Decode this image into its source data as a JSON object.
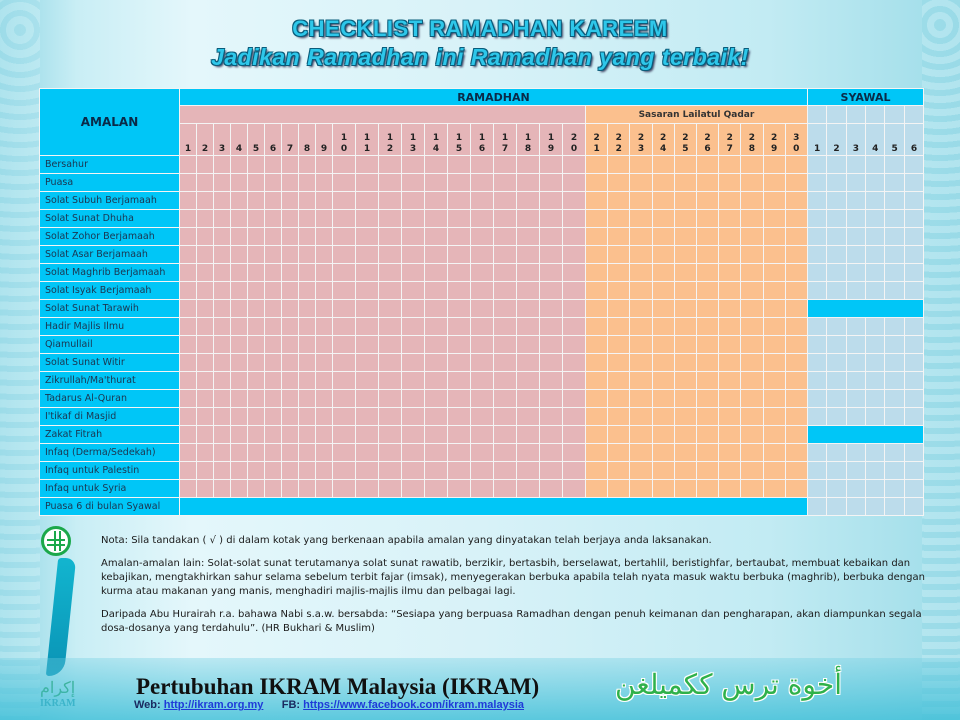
{
  "header": {
    "title": "CHECKLIST RAMADHAN KAREEM",
    "subtitle": "Jadikan Ramadhan ini Ramadhan yang terbaik!"
  },
  "table": {
    "amalan_header": "AMALAN",
    "ramadhan_header": "RAMADHAN",
    "syawal_header": "SYAWAL",
    "lailatul_qadar_header": "Sasaran Lailatul Qadar",
    "ramadhan_days": [
      "1",
      "2",
      "3",
      "4",
      "5",
      "6",
      "7",
      "8",
      "9",
      "10",
      "11",
      "12",
      "13",
      "14",
      "15",
      "16",
      "17",
      "18",
      "19",
      "20",
      "21",
      "22",
      "23",
      "24",
      "25",
      "26",
      "27",
      "28",
      "29",
      "30"
    ],
    "syawal_days": [
      "1",
      "2",
      "3",
      "4",
      "5",
      "6"
    ],
    "rows": [
      {
        "label": "Bersahur",
        "ramadhan": true,
        "syawal": true
      },
      {
        "label": "Puasa",
        "ramadhan": true,
        "syawal": true
      },
      {
        "label": "Solat Subuh Berjamaah",
        "ramadhan": true,
        "syawal": true
      },
      {
        "label": "Solat Sunat Dhuha",
        "ramadhan": true,
        "syawal": true
      },
      {
        "label": "Solat Zohor Berjamaah",
        "ramadhan": true,
        "syawal": true
      },
      {
        "label": "Solat Asar Berjamaah",
        "ramadhan": true,
        "syawal": true
      },
      {
        "label": "Solat Maghrib Berjamaah",
        "ramadhan": true,
        "syawal": true
      },
      {
        "label": "Solat Isyak Berjamaah",
        "ramadhan": true,
        "syawal": true
      },
      {
        "label": "Solat Sunat Tarawih",
        "ramadhan": true,
        "syawal": false
      },
      {
        "label": "Hadir Majlis Ilmu",
        "ramadhan": true,
        "syawal": true
      },
      {
        "label": "Qiamullail",
        "ramadhan": true,
        "syawal": true
      },
      {
        "label": "Solat Sunat Witir",
        "ramadhan": true,
        "syawal": true
      },
      {
        "label": "Zikrullah/Ma'thurat",
        "ramadhan": true,
        "syawal": true
      },
      {
        "label": "Tadarus Al-Quran",
        "ramadhan": true,
        "syawal": true
      },
      {
        "label": "I'tikaf di Masjid",
        "ramadhan": true,
        "syawal": true
      },
      {
        "label": "Zakat Fitrah",
        "ramadhan": true,
        "syawal": false
      },
      {
        "label": "Infaq (Derma/Sedekah)",
        "ramadhan": true,
        "syawal": true
      },
      {
        "label": "Infaq untuk Palestin",
        "ramadhan": true,
        "syawal": true
      },
      {
        "label": "Infaq untuk Syria",
        "ramadhan": true,
        "syawal": true
      },
      {
        "label": "Puasa 6 di bulan Syawal",
        "ramadhan": false,
        "syawal": true
      }
    ]
  },
  "notes": {
    "nota": "Nota:  Sila tandakan ( √ ) di dalam kotak yang berkenaan apabila amalan yang dinyatakan telah berjaya anda laksanakan.",
    "amalan_lain": "Amalan-amalan lain: Solat-solat sunat terutamanya solat sunat rawatib, berzikir, bertasbih, berselawat, bertahlil, beristighfar, bertaubat, membuat kebaikan dan kebajikan, mengtakhirkan sahur selama sebelum terbit fajar (imsak), menyegerakan berbuka apabila telah nyata masuk waktu berbuka (maghrib), berbuka dengan kurma atau makanan yang manis, menghadiri majlis-majlis ilmu dan pelbagai lagi.",
    "hadith": "Daripada Abu Hurairah r.a. bahawa Nabi s.a.w. bersabda: “Sesiapa yang berpuasa Ramadhan dengan penuh keimanan dan pengharapan, akan diampunkan segala dosa-dosanya yang terdahulu”. (HR Bukhari & Muslim)"
  },
  "logo": {
    "arabic": "إكرام",
    "name": "IKRAM"
  },
  "footer": {
    "organization": "Pertubuhan IKRAM Malaysia (IKRAM)",
    "web_label": "Web:",
    "web_url": "http://ikram.org.my",
    "fb_label": "FB:",
    "fb_url": "https://www.facebook.com/ikram.malaysia",
    "slogan": "أخوة ترس ككميلغن"
  },
  "colors": {
    "header_blue": "#00c6f7",
    "ramadhan_pink": "#e5b5b8",
    "lailatul_qadar_orange": "#fbc08e",
    "syawal_lightblue": "#bcdceb"
  }
}
